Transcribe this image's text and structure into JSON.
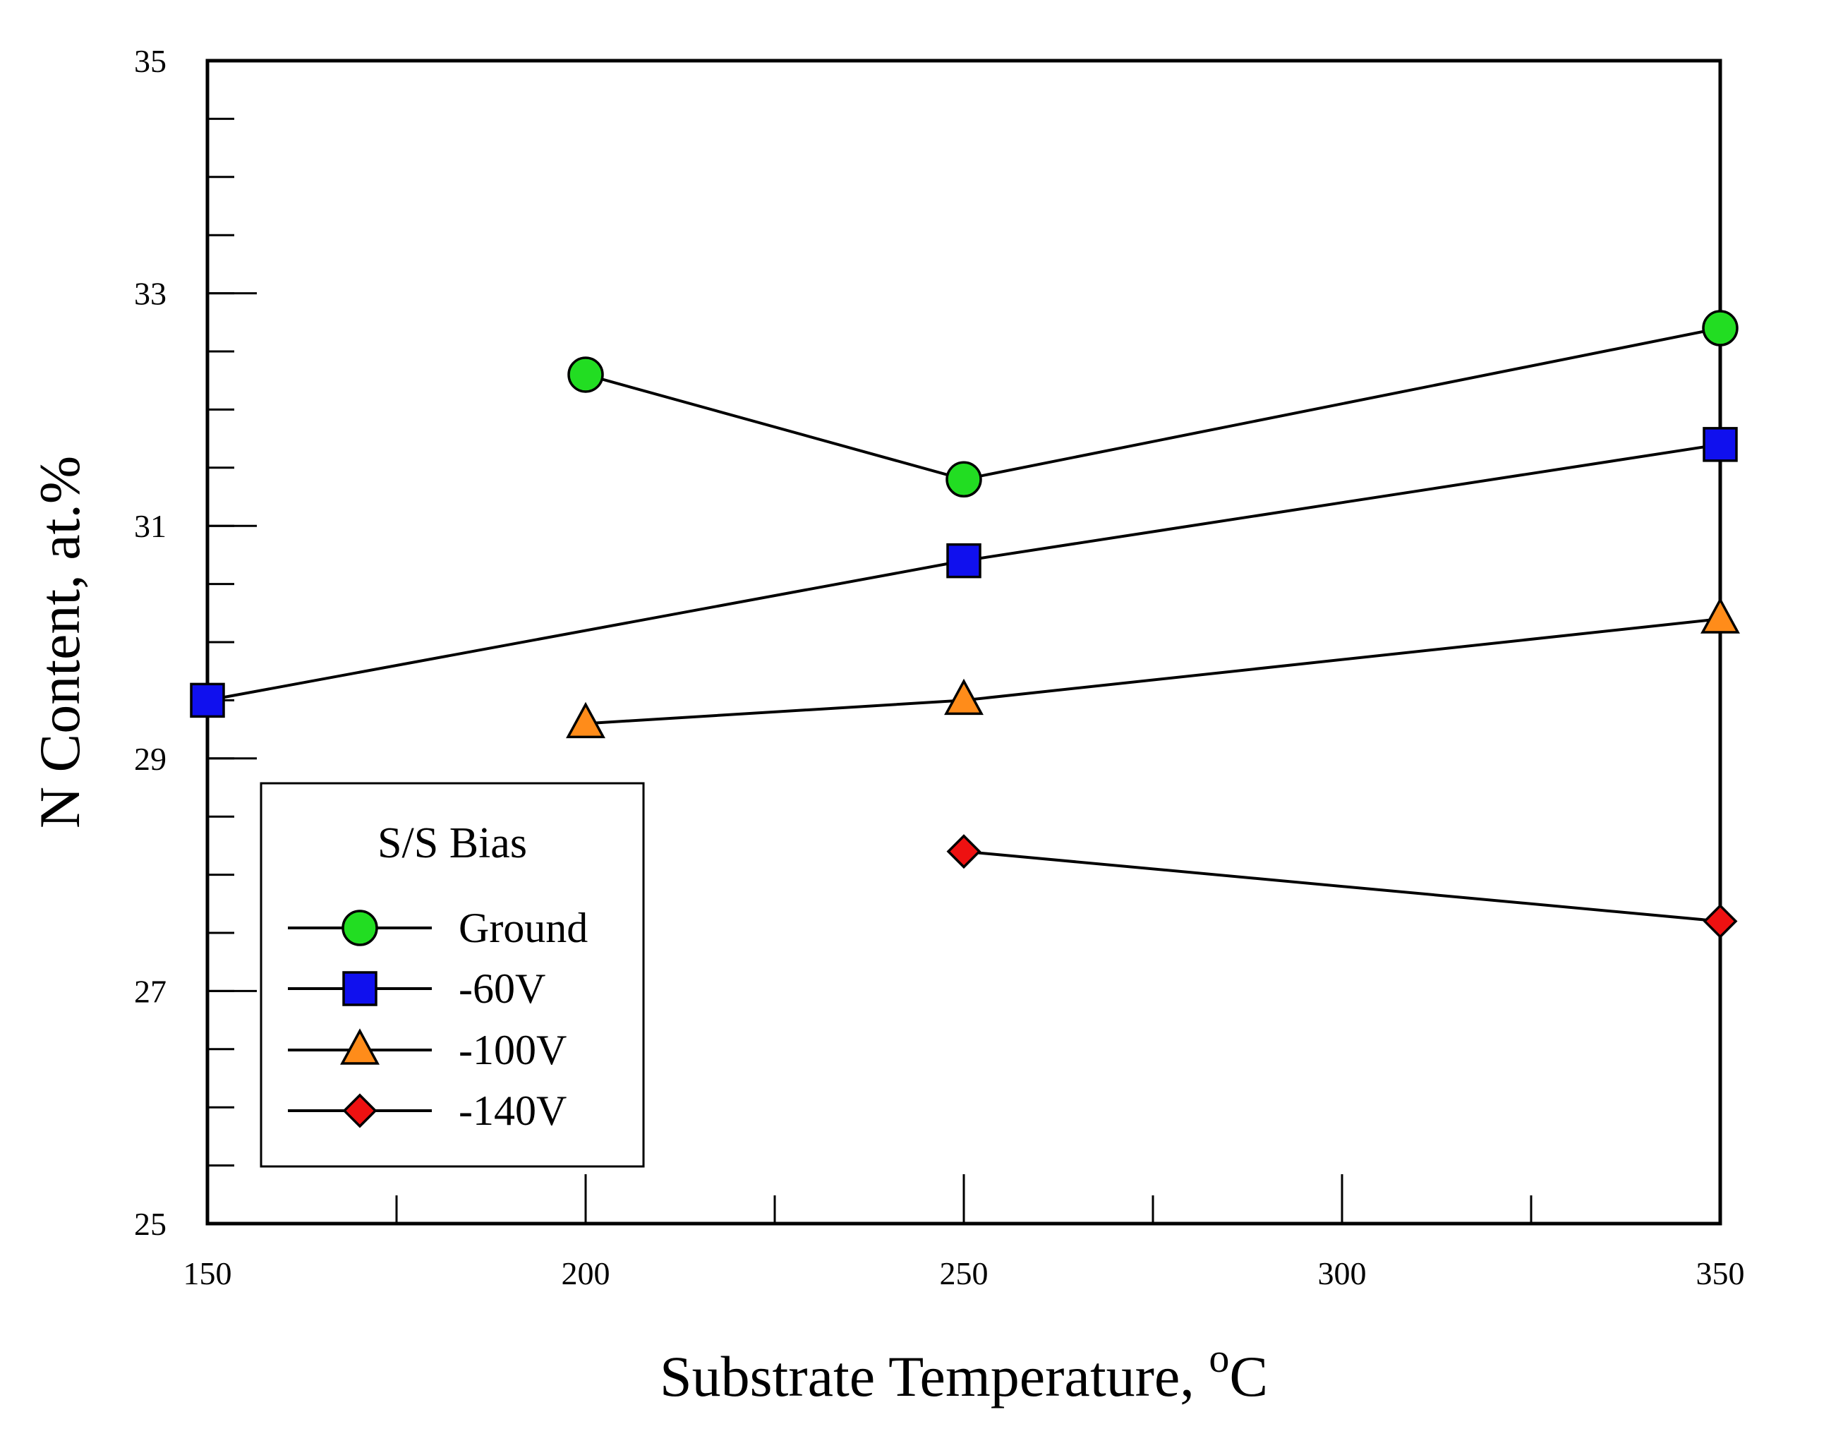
{
  "chart_data": {
    "type": "line",
    "xlabel": "Substrate Temperature, ",
    "xlabel_superscript": "o",
    "xlabel_suffix": "C",
    "ylabel": "N Content, at.%",
    "xlim": [
      150,
      350
    ],
    "ylim": [
      25,
      35
    ],
    "x_ticks": [
      "150",
      "200",
      "250",
      "300",
      "350"
    ],
    "y_ticks": [
      "25",
      "27",
      "29",
      "31",
      "33",
      "35"
    ],
    "x_minor_step": 25,
    "y_minor_step": 0.5,
    "legend": {
      "title": "S/S Bias",
      "position": "bottom-left"
    },
    "series": [
      {
        "name": "Ground",
        "marker": "circle",
        "color": "#22dd22",
        "x": [
          200,
          250,
          350
        ],
        "y": [
          32.3,
          31.4,
          32.7
        ]
      },
      {
        "name": "-60V",
        "marker": "square",
        "color": "#1010ee",
        "x": [
          150,
          250,
          350
        ],
        "y": [
          29.5,
          30.7,
          31.7
        ]
      },
      {
        "name": "-100V",
        "marker": "triangle",
        "color": "#ff8c1a",
        "x": [
          200,
          250,
          350
        ],
        "y": [
          29.3,
          29.5,
          30.2
        ]
      },
      {
        "name": "-140V",
        "marker": "diamond",
        "color": "#ee1111",
        "x": [
          250,
          350
        ],
        "y": [
          28.2,
          27.6
        ]
      }
    ]
  }
}
